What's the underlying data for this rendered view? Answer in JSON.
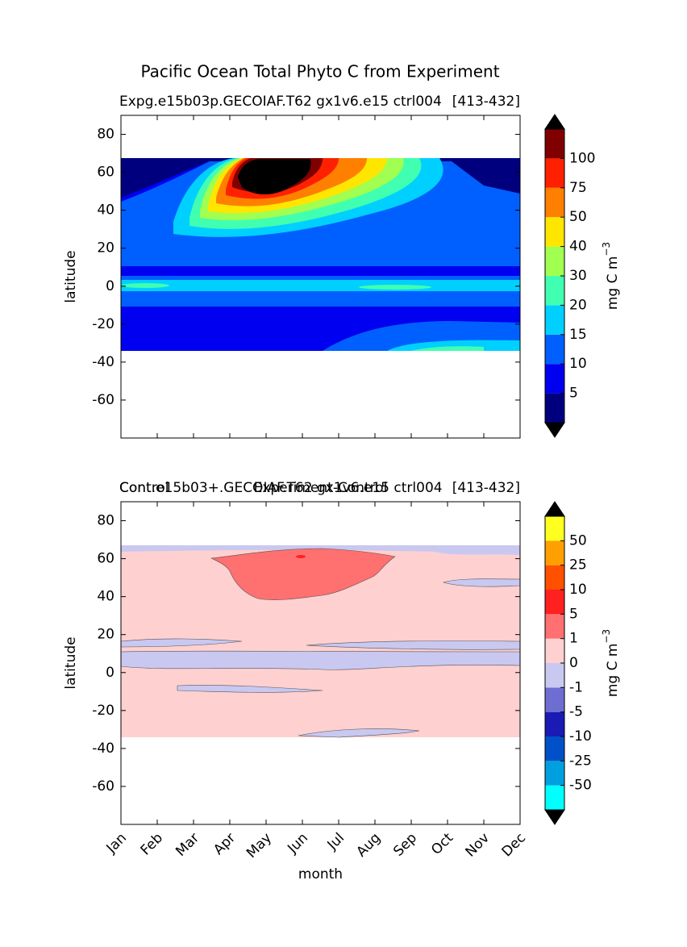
{
  "suptitle": "Pacific Ocean Total Phyto C from Experiment",
  "chart_data": [
    {
      "type": "contour",
      "title_left": "Expg.e15b03p.GECOIAF.T62 gx1v6.e15 ctrl004",
      "title_right": "[413-432]",
      "ylabel": "latitude",
      "ylim": [
        -80,
        90
      ],
      "yticks": [
        -60,
        -40,
        -20,
        0,
        20,
        40,
        60,
        80
      ],
      "colorbar_label": "mg C m",
      "colorbar_label_exponent": "−3",
      "levels": [
        5,
        10,
        15,
        20,
        30,
        40,
        50,
        75,
        100
      ],
      "colors": [
        "#00007f",
        "#0000f1",
        "#0060ff",
        "#00d0ff",
        "#40ffb0",
        "#a0ff50",
        "#ffe600",
        "#ff8000",
        "#ff2000",
        "#800000"
      ],
      "extend_colors": [
        "#000000",
        "#000000"
      ]
    },
    {
      "type": "contour",
      "title_left": "Control",
      "title_left_2": "Cont.e15b03+.GECOIAF.T62 gx1v6.e15 ctrl004",
      "title_right": "[413-432]",
      "title": "Experiment-Control",
      "xlabel": "month",
      "ylabel": "latitude",
      "categories": [
        "Jan",
        "Feb",
        "Mar",
        "Apr",
        "May",
        "Jun",
        "Jul",
        "Aug",
        "Sep",
        "Oct",
        "Nov",
        "Dec"
      ],
      "ylim": [
        -80,
        90
      ],
      "yticks": [
        -60,
        -40,
        -20,
        0,
        20,
        40,
        60,
        80
      ],
      "colorbar_label": "mg C m",
      "colorbar_label_exponent": "−3",
      "levels": [
        -50,
        -25,
        -10,
        -5,
        -1,
        0,
        1,
        5,
        10,
        25,
        50
      ],
      "colors": [
        "#00ffff",
        "#00a0e0",
        "#0050c8",
        "#1a1ab4",
        "#6e6ed2",
        "#c8c8f0",
        "#ffd0d0",
        "#ff7070",
        "#ff2020",
        "#ff5000",
        "#ffa000",
        "#ffff20"
      ],
      "extend_colors": [
        "#000000",
        "#000000"
      ]
    }
  ]
}
